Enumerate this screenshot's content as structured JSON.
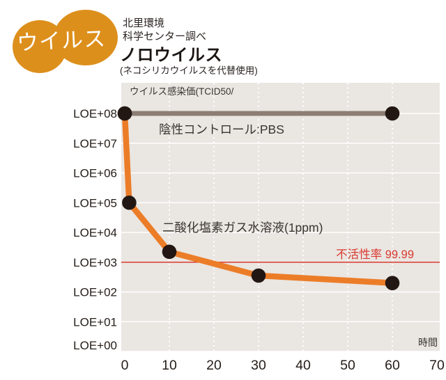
{
  "badge": {
    "label": "ウイルス"
  },
  "header": {
    "source_line1": "北里環境",
    "source_line2": "科学センター調べ",
    "title": "ノロウイルス",
    "subtitle": "(ネコシリカウイルスを代替使用)"
  },
  "chart_data": {
    "type": "line",
    "y_axis_title": "ウイルス感染価(TCID50/",
    "x_axis_unit": "時間",
    "x_ticks": [
      0,
      10,
      20,
      30,
      40,
      50,
      60,
      70
    ],
    "xlim": [
      0,
      70
    ],
    "y_tick_labels": [
      "LOE+08",
      "LOE+07",
      "LOE+06",
      "LOE+05",
      "LOE+04",
      "LOE+03",
      "LOE+02",
      "LOE+01",
      "LOE+00"
    ],
    "y_log_range": [
      0,
      8
    ],
    "grid": {
      "horizontal": "solid white every decade",
      "vertical": "dotted white at x=10 to 60"
    },
    "series": [
      {
        "name": "陰性コントロール:PBS",
        "color": "#8c7e74",
        "x": [
          0,
          60
        ],
        "log10_titer": [
          8,
          8
        ]
      },
      {
        "name": "二酸化塩素ガス水溶液(1ppm)",
        "color": "#ec7d28",
        "x": [
          0,
          1,
          10,
          30,
          60
        ],
        "log10_titer": [
          8,
          5,
          3.35,
          2.55,
          2.3
        ]
      }
    ],
    "threshold_line": {
      "label": "不活性率 99.99",
      "log10_value": 3,
      "color": "#da392e"
    },
    "marker_color": "#231713",
    "plot_bg": "#eae6e2"
  }
}
